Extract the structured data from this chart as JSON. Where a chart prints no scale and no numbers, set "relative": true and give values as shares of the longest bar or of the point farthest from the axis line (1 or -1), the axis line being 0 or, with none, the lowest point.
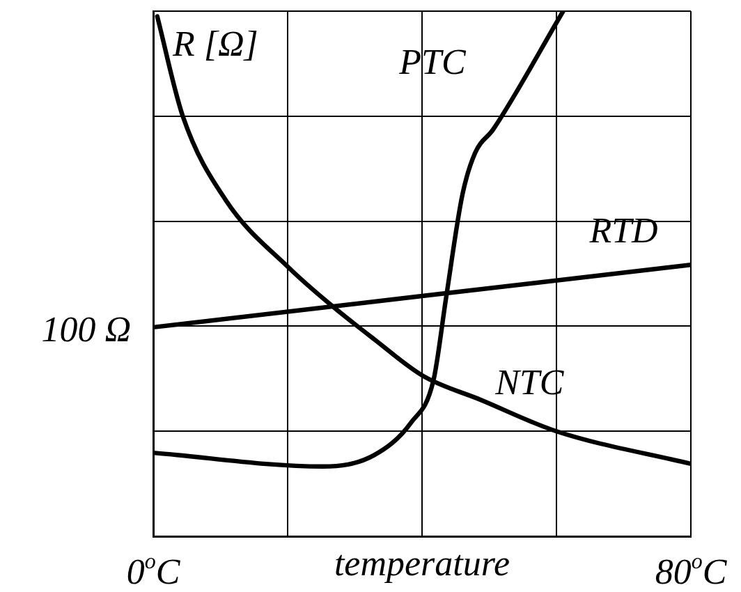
{
  "chart_data": {
    "type": "line",
    "relative": true,
    "xlabel": "temperature",
    "ylabel": "R [Ω]",
    "xlim": [
      0,
      80
    ],
    "xticks": [
      {
        "value": 0,
        "label": "0$^{o}$C"
      },
      {
        "value": 20,
        "label": null
      },
      {
        "value": 40,
        "label": null
      },
      {
        "value": 60,
        "label": null
      },
      {
        "value": 80,
        "label": "80$^{o}$C"
      }
    ],
    "grid": true,
    "legend": false,
    "marker": "none",
    "line_style": "solid",
    "series": [
      {
        "name": "PTC",
        "color": "#000000",
        "x": [
          0,
          25.2,
          32.8,
          38.4,
          41.7,
          43.6,
          46,
          47.9,
          50.6,
          61
        ],
        "values": [
          0.159,
          0.133,
          0.154,
          0.217,
          0.297,
          0.456,
          0.65,
          0.73,
          0.775,
          1.0
        ]
      },
      {
        "name": "RTD",
        "color": "#000000",
        "x": [
          0,
          80
        ],
        "values": [
          0.398,
          0.517
        ]
      },
      {
        "name": "NTC",
        "color": "#000000",
        "x": [
          0.6,
          4.4,
          10.8,
          20.3,
          26.5,
          32.8,
          40.2,
          48.7,
          60,
          80
        ],
        "values": [
          0.99,
          0.8,
          0.64,
          0.51,
          0.44,
          0.376,
          0.305,
          0.26,
          0.2,
          0.138
        ]
      }
    ],
    "annotations": [
      {
        "text": "100 Ω",
        "x": 0,
        "y": 0.398
      }
    ]
  }
}
